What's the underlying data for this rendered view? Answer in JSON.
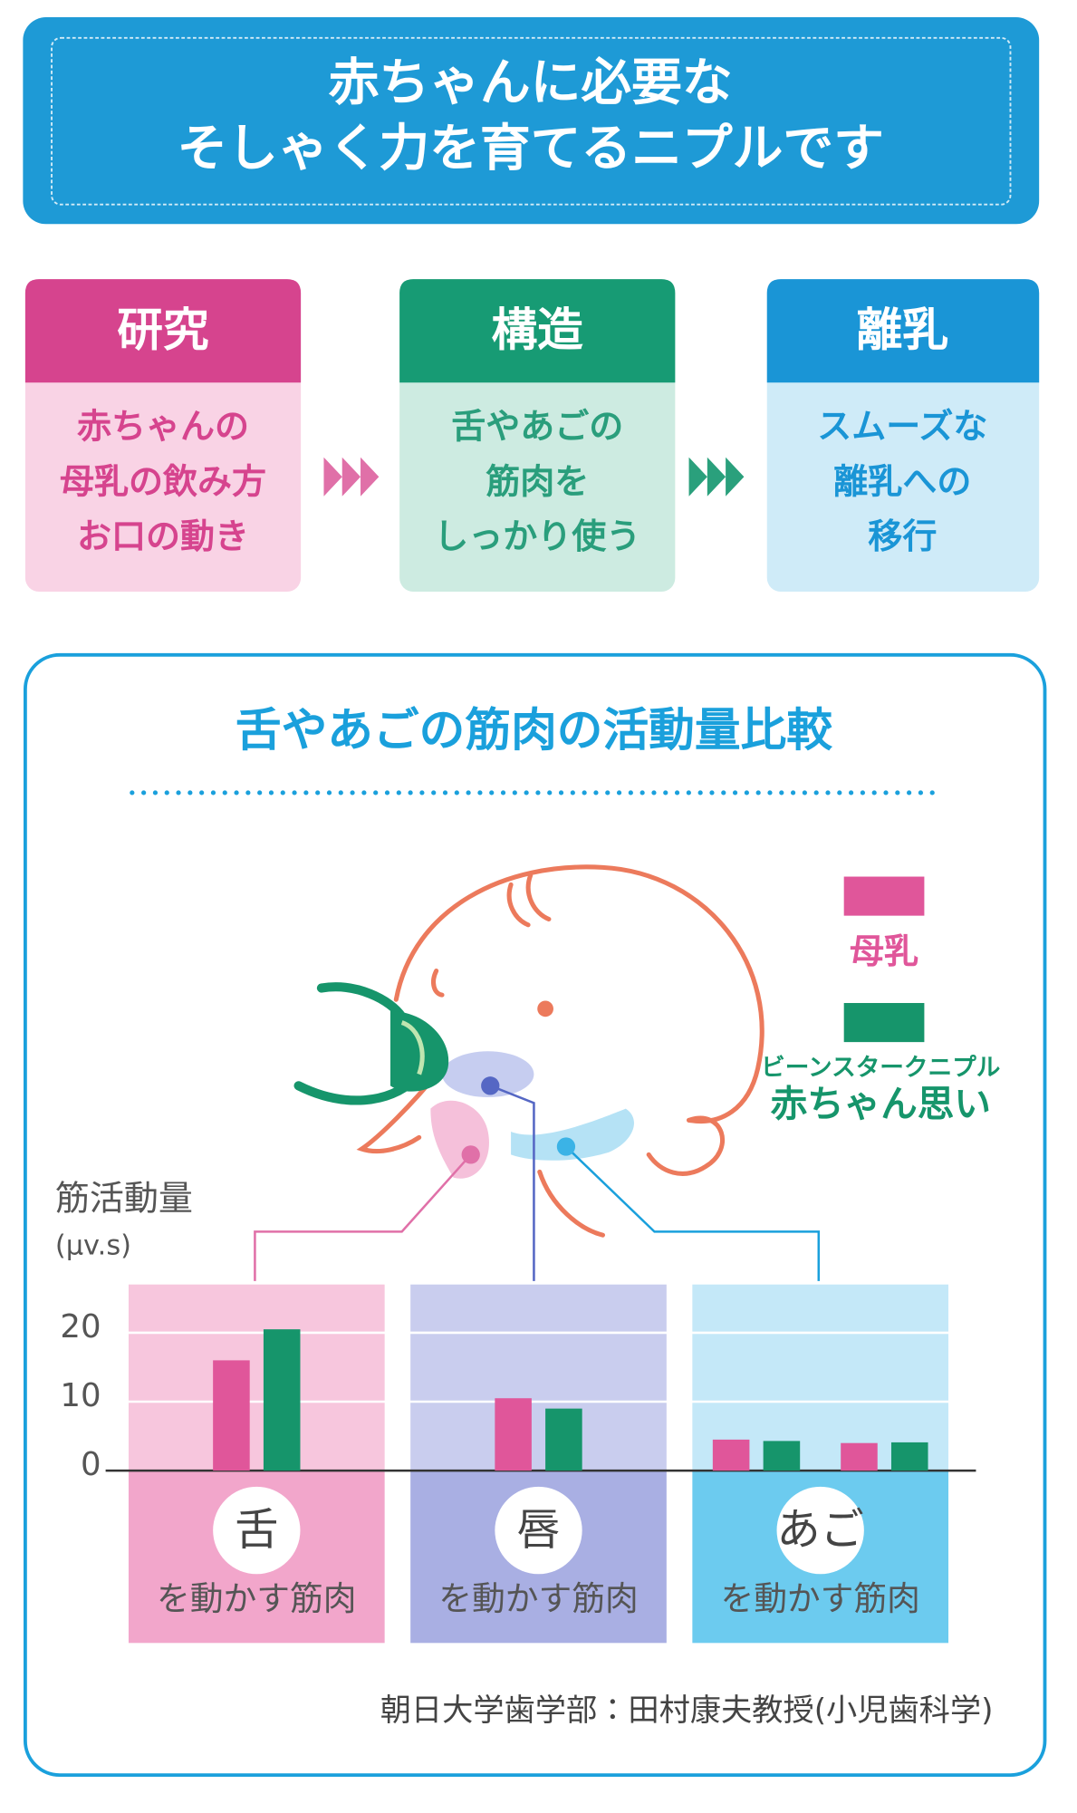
{
  "header": {
    "title_lines": [
      "赤ちゃんに必要な",
      "そしゃく力を育てるニプルです"
    ]
  },
  "steps": [
    {
      "heading": "研究",
      "lines": [
        "赤ちゃんの",
        "母乳の飲み方",
        "お口の動き"
      ]
    },
    {
      "heading": "構造",
      "lines": [
        "舌やあごの",
        "筋肉を",
        "しっかり使う"
      ]
    },
    {
      "heading": "離乳",
      "lines": [
        "スムーズな",
        "離乳への",
        "移行"
      ]
    }
  ],
  "chart_data": {
    "type": "bar",
    "title": "舌やあごの筋肉の活動量比較",
    "y_label": "筋活動量",
    "y_unit": "(μv.s)",
    "categories": [
      "舌",
      "唇",
      "あご",
      null
    ],
    "category_sublabels": [
      "を動かす筋肉",
      "を動かす筋肉",
      "を動かす筋肉",
      null
    ],
    "series": [
      {
        "name": "母乳",
        "color": "#e0569a",
        "values": [
          16,
          10.5,
          4.5,
          4
        ]
      },
      {
        "name": "赤ちゃん思い",
        "brand": "ビーンスタークニプル",
        "color": "#16956b",
        "values": [
          20.5,
          9,
          4.3,
          4.1
        ]
      }
    ],
    "ylim": [
      0,
      25
    ],
    "yticks": [
      0,
      10,
      20
    ],
    "grid": true,
    "source": "朝日大学歯学部：田村康夫教授(小児歯科学)"
  }
}
